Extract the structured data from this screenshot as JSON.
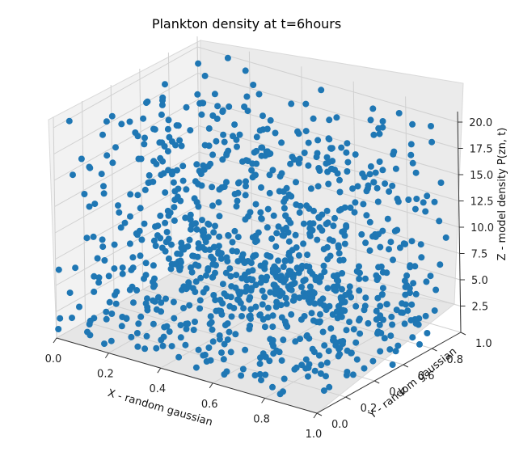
{
  "chart_data": {
    "type": "scatter",
    "projection": "3d",
    "title": "Plankton density at t=6hours",
    "xlabel": "X - random gaussian",
    "ylabel": "Y - random gaussian",
    "zlabel": "Z - model density P(zn, t)",
    "xlim": [
      0,
      1
    ],
    "ylim": [
      0,
      1
    ],
    "zlim": [
      0,
      21
    ],
    "xticks": [
      "0.0",
      "0.2",
      "0.4",
      "0.6",
      "0.8",
      "1.0"
    ],
    "yticks": [
      "0.0",
      "0.2",
      "0.4",
      "0.6",
      "0.8",
      "1.0"
    ],
    "zticks": [
      "2.5",
      "5.0",
      "7.5",
      "10.0",
      "12.5",
      "15.0",
      "17.5",
      "20.0"
    ],
    "grid": true,
    "color": "#1f77b4",
    "point_count": 1000,
    "distribution": "x and y uniform in [0, 1]; z density skewed toward low values (mostly 0–12, tail to ~20.5)"
  }
}
